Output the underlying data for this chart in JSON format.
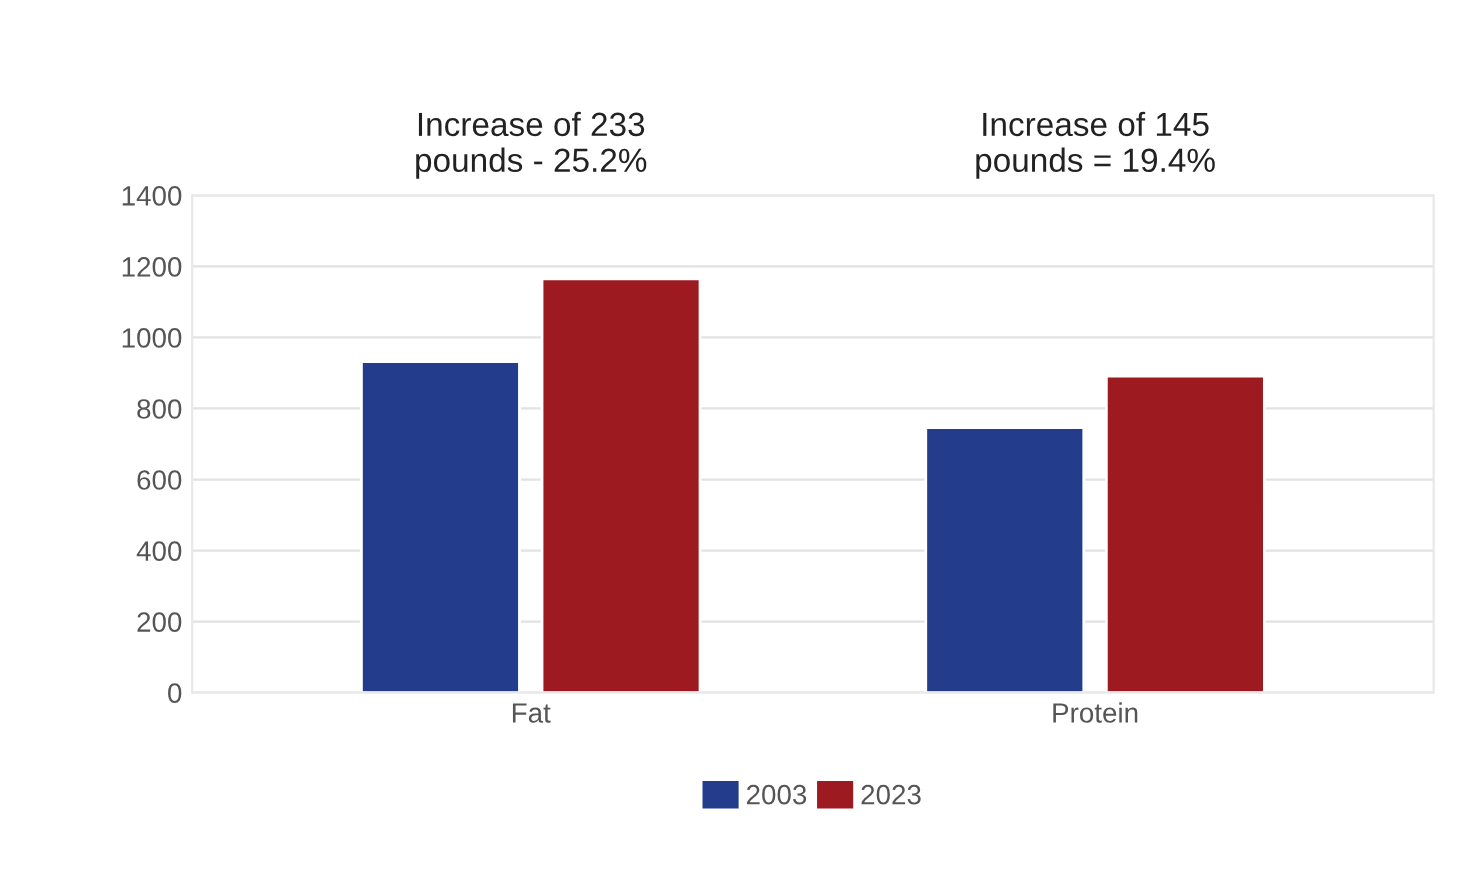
{
  "chart_data": {
    "type": "bar",
    "categories": [
      "Fat",
      "Protein"
    ],
    "series": [
      {
        "name": "2003",
        "color": "#233d8c",
        "values": [
          932,
          746
        ]
      },
      {
        "name": "2023",
        "color": "#9c1a20",
        "values": [
          1165,
          891
        ]
      }
    ],
    "ylim": [
      0,
      1400
    ],
    "yticks": [
      0,
      200,
      400,
      600,
      800,
      1000,
      1200,
      1400
    ],
    "grid": "y",
    "legend": "bottom",
    "annotations": [
      "Increase of 233\npounds - 25.2%",
      "Increase of 145\npounds = 19.4%"
    ]
  }
}
